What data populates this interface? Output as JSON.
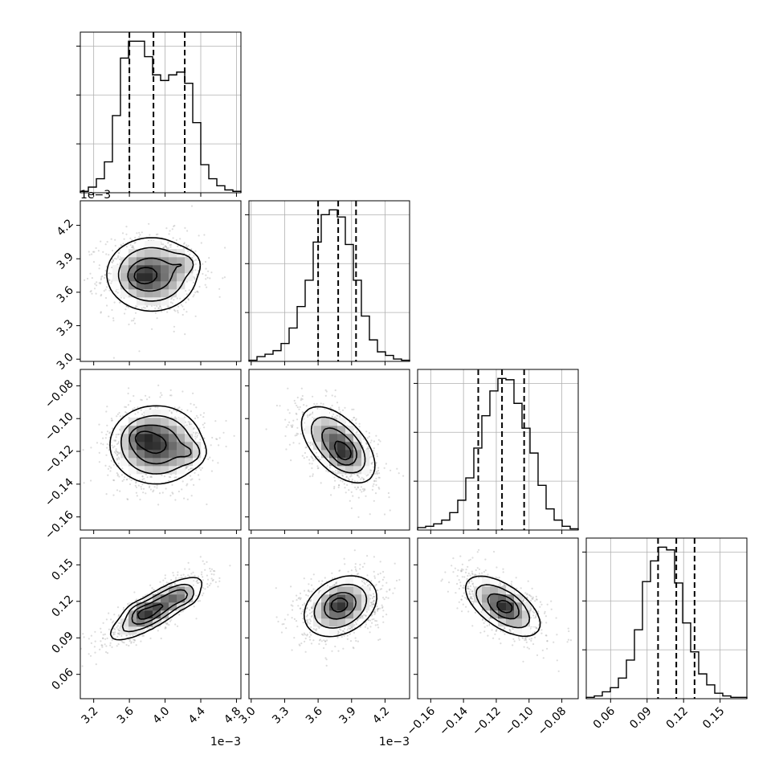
{
  "chart_data": {
    "type": "corner",
    "title": "",
    "n_params": 4,
    "params": [
      {
        "range": [
          3.05,
          4.85
        ],
        "offset_label": "1e−3",
        "ticks": [
          3.2,
          3.6,
          4.0,
          4.4,
          4.8
        ],
        "tick_labels": [
          "3.2",
          "3.6",
          "4.0",
          "4.4",
          "4.8"
        ],
        "quantiles": [
          3.6,
          3.87,
          4.22
        ]
      },
      {
        "range": [
          2.98,
          4.42
        ],
        "offset_label": "1e−3",
        "ticks": [
          3.0,
          3.3,
          3.6,
          3.9,
          4.2
        ],
        "tick_labels": [
          "3.0",
          "3.3",
          "3.6",
          "3.9",
          "4.2"
        ],
        "quantiles": [
          3.6,
          3.78,
          3.94
        ]
      },
      {
        "range": [
          -0.168,
          -0.07
        ],
        "offset_label": "",
        "ticks": [
          -0.16,
          -0.14,
          -0.12,
          -0.1,
          -0.08
        ],
        "tick_labels": [
          "−0.16",
          "−0.14",
          "−0.12",
          "−0.10",
          "−0.08"
        ],
        "quantiles": [
          -0.131,
          -0.1165,
          -0.103
        ]
      },
      {
        "range": [
          0.04,
          0.172
        ],
        "offset_label": "",
        "ticks": [
          0.06,
          0.09,
          0.12,
          0.15
        ],
        "tick_labels": [
          "0.06",
          "0.09",
          "0.12",
          "0.15"
        ],
        "quantiles": [
          0.099,
          0.114,
          0.129
        ]
      }
    ],
    "histograms": [
      [
        1,
        4,
        10,
        22,
        55,
        96,
        108,
        108,
        97,
        84,
        80,
        84,
        86,
        78,
        50,
        20,
        10,
        5,
        2,
        1
      ],
      [
        1,
        4,
        6,
        9,
        15,
        28,
        46,
        68,
        100,
        123,
        127,
        121,
        98,
        68,
        38,
        18,
        8,
        5,
        2,
        1
      ],
      [
        2,
        3,
        5,
        8,
        14,
        24,
        42,
        66,
        92,
        112,
        122,
        121,
        102,
        82,
        62,
        36,
        17,
        8,
        3,
        1
      ],
      [
        1,
        2,
        5,
        8,
        15,
        28,
        50,
        85,
        100,
        110,
        108,
        84,
        55,
        34,
        18,
        10,
        4,
        2,
        1,
        1
      ]
    ],
    "pairs": [
      {
        "x": 0,
        "y": 1,
        "mean": [
          3.85,
          3.76
        ],
        "sd": [
          0.26,
          0.17
        ],
        "corr": 0.0,
        "modes": [
          [
            3.72,
            3.74
          ],
          [
            4.22,
            3.86
          ]
        ]
      },
      {
        "x": 0,
        "y": 2,
        "mean": [
          3.9,
          -0.116
        ],
        "sd": [
          0.26,
          0.012
        ],
        "corr": 0.0,
        "modes": [
          [
            3.72,
            -0.111
          ],
          [
            4.28,
            -0.121
          ]
        ]
      },
      {
        "x": 0,
        "y": 3,
        "mean": [
          3.9,
          0.114
        ],
        "sd": [
          0.26,
          0.013
        ],
        "corr": 0.82,
        "modes": [
          [
            3.72,
            0.111
          ],
          [
            4.2,
            0.124
          ]
        ]
      },
      {
        "x": 1,
        "y": 2,
        "mean": [
          3.78,
          -0.116
        ],
        "sd": [
          0.17,
          0.012
        ],
        "corr": -0.55,
        "modes": [
          [
            3.84,
            -0.122
          ]
        ]
      },
      {
        "x": 1,
        "y": 3,
        "mean": [
          3.8,
          0.116
        ],
        "sd": [
          0.17,
          0.013
        ],
        "corr": 0.3,
        "modes": [
          [
            3.78,
            0.118
          ]
        ]
      },
      {
        "x": 2,
        "y": 3,
        "mean": [
          -0.116,
          0.116
        ],
        "sd": [
          0.012,
          0.013
        ],
        "corr": -0.6,
        "modes": [
          [
            -0.114,
            0.116
          ]
        ]
      }
    ],
    "contour_levels": [
      0.5,
      1.0,
      1.5,
      2.0
    ],
    "grid": true
  }
}
